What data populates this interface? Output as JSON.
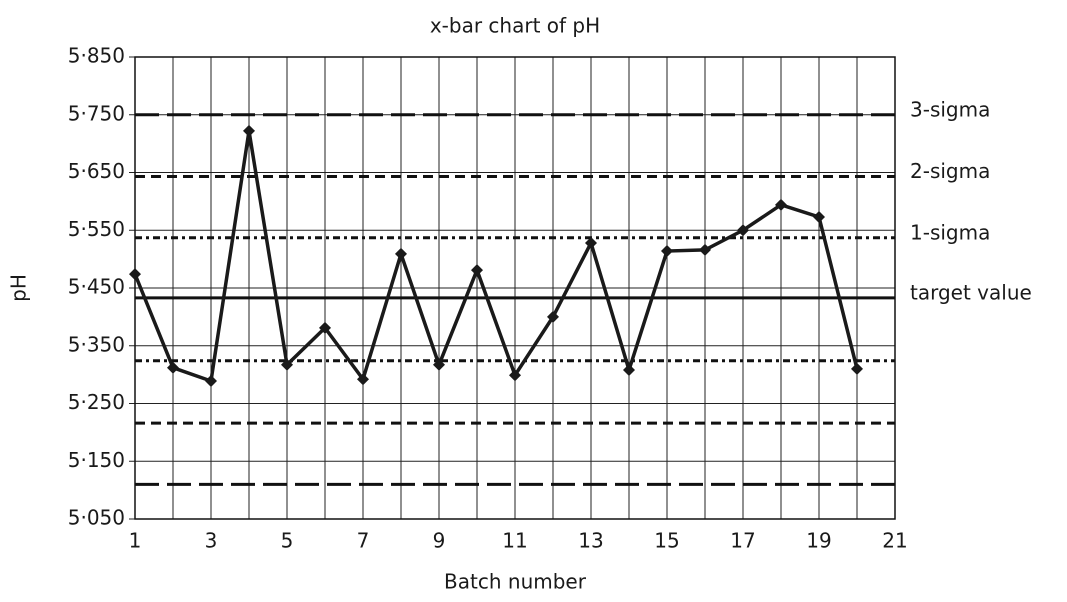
{
  "chart_data": {
    "type": "line",
    "title": "x-bar chart of pH",
    "x_label": "Batch number",
    "y_label": "pH",
    "x": [
      1,
      2,
      3,
      4,
      5,
      6,
      7,
      8,
      9,
      10,
      11,
      12,
      13,
      14,
      15,
      16,
      17,
      18,
      19,
      20
    ],
    "series": [
      {
        "name": "pH",
        "color": "#1a1a1a",
        "values": [
          5.474,
          5.312,
          5.289,
          5.722,
          5.317,
          5.381,
          5.292,
          5.509,
          5.317,
          5.481,
          5.299,
          5.4,
          5.528,
          5.308,
          5.514,
          5.516,
          5.55,
          5.594,
          5.573,
          5.31
        ]
      }
    ],
    "xlim": [
      1,
      21
    ],
    "xticks": [
      1,
      3,
      5,
      7,
      9,
      11,
      13,
      15,
      17,
      19,
      21
    ],
    "xminor": [
      2,
      4,
      6,
      8,
      10,
      12,
      14,
      16,
      18,
      20
    ],
    "ylim": [
      5.05,
      5.85
    ],
    "yticks": [
      {
        "value": 5.05,
        "label": "5·050"
      },
      {
        "value": 5.15,
        "label": "5·150"
      },
      {
        "value": 5.25,
        "label": "5·250"
      },
      {
        "value": 5.35,
        "label": "5·350"
      },
      {
        "value": 5.45,
        "label": "5·450"
      },
      {
        "value": 5.55,
        "label": "5·550"
      },
      {
        "value": 5.65,
        "label": "5·650"
      },
      {
        "value": 5.75,
        "label": "5·750"
      },
      {
        "value": 5.85,
        "label": "5·850"
      }
    ],
    "grid": true,
    "reference_lines": [
      {
        "label": "3-sigma",
        "values": [
          5.75,
          5.11
        ],
        "style": "long-dash"
      },
      {
        "label": "2-sigma",
        "values": [
          5.643,
          5.216
        ],
        "style": "dash"
      },
      {
        "label": "1-sigma",
        "values": [
          5.537,
          5.324
        ],
        "style": "dot-dash"
      },
      {
        "label": "target value",
        "values": [
          5.433
        ],
        "style": "solid"
      }
    ]
  }
}
